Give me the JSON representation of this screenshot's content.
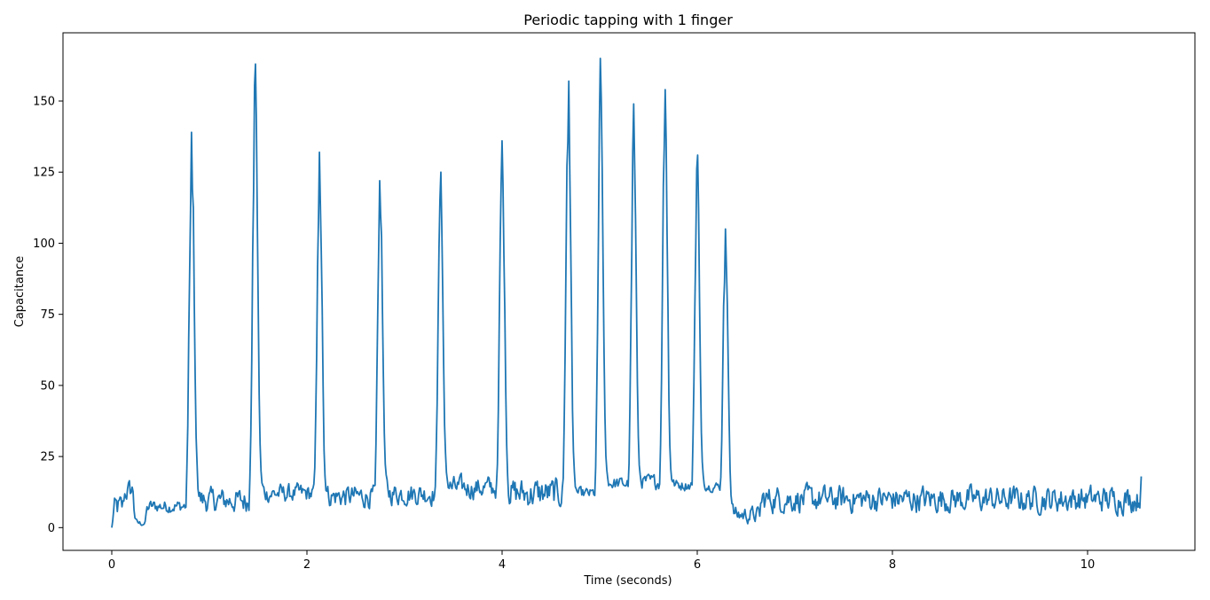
{
  "chart_data": {
    "type": "line",
    "title": "Periodic tapping with 1 finger",
    "xlabel": "Time (seconds)",
    "ylabel": "Capacitance",
    "xlim": [
      -0.5,
      11.1
    ],
    "ylim": [
      -8,
      174
    ],
    "xticks": [
      0,
      2,
      4,
      6,
      8,
      10
    ],
    "yticks": [
      0,
      25,
      50,
      75,
      100,
      125,
      150
    ],
    "grid": false,
    "line_color": "#1f77b4",
    "baseline_noise": [
      {
        "x_start": 0.0,
        "x_end": 0.12,
        "low": 0,
        "high": 14
      },
      {
        "x_start": 0.12,
        "x_end": 0.22,
        "low": 7,
        "high": 19
      },
      {
        "x_start": 0.22,
        "x_end": 0.35,
        "low": 0,
        "high": 3
      },
      {
        "x_start": 0.35,
        "x_end": 0.78,
        "low": 4,
        "high": 11
      },
      {
        "x_start": 0.9,
        "x_end": 1.42,
        "low": 3,
        "high": 16
      },
      {
        "x_start": 1.52,
        "x_end": 2.1,
        "low": 7,
        "high": 17
      },
      {
        "x_start": 2.18,
        "x_end": 2.7,
        "low": 5,
        "high": 17
      },
      {
        "x_start": 2.8,
        "x_end": 3.32,
        "low": 6,
        "high": 18
      },
      {
        "x_start": 3.42,
        "x_end": 3.98,
        "low": 8,
        "high": 20
      },
      {
        "x_start": 4.05,
        "x_end": 4.65,
        "low": 4,
        "high": 20
      },
      {
        "x_start": 4.72,
        "x_end": 4.98,
        "low": 9,
        "high": 15
      },
      {
        "x_start": 5.05,
        "x_end": 5.32,
        "low": 12,
        "high": 19
      },
      {
        "x_start": 5.38,
        "x_end": 5.64,
        "low": 12,
        "high": 20
      },
      {
        "x_start": 5.7,
        "x_end": 5.96,
        "low": 12,
        "high": 18
      },
      {
        "x_start": 6.03,
        "x_end": 6.25,
        "low": 12,
        "high": 17
      },
      {
        "x_start": 6.33,
        "x_end": 6.65,
        "low": 0,
        "high": 9
      },
      {
        "x_start": 6.65,
        "x_end": 10.55,
        "low": 3,
        "high": 17
      }
    ],
    "peaks": [
      {
        "x": 0.82,
        "y": 139
      },
      {
        "x": 1.47,
        "y": 163
      },
      {
        "x": 2.13,
        "y": 132
      },
      {
        "x": 2.75,
        "y": 122
      },
      {
        "x": 3.37,
        "y": 125
      },
      {
        "x": 4.0,
        "y": 136
      },
      {
        "x": 4.68,
        "y": 157
      },
      {
        "x": 5.01,
        "y": 165
      },
      {
        "x": 5.35,
        "y": 149
      },
      {
        "x": 5.67,
        "y": 154
      },
      {
        "x": 6.0,
        "y": 131
      },
      {
        "x": 6.29,
        "y": 105
      }
    ],
    "end_x": 10.55,
    "end_y": 18
  }
}
